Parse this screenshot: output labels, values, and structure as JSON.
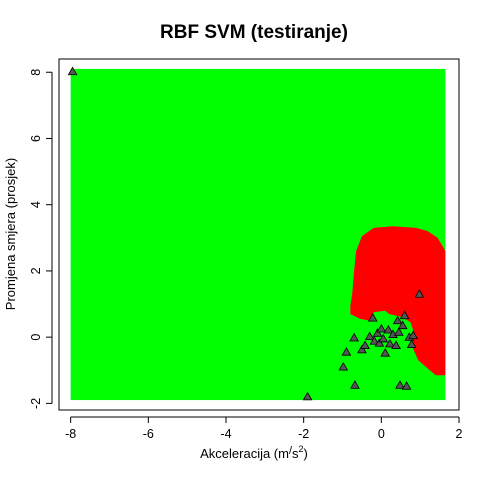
{
  "chart_data": {
    "type": "scatter",
    "title": "RBF SVM (testiranje)",
    "xlabel_prefix": "Akceleracija (m",
    "xlabel_slash": "/",
    "xlabel_unit": "s",
    "xlabel_exp": "2",
    "xlabel_suffix": ")",
    "ylabel": "Promjena smjera (prosjek)",
    "xlim": [
      -8.3,
      2.0
    ],
    "ylim": [
      -2.2,
      8.4
    ],
    "x_ticks": [
      -8,
      -6,
      -4,
      -2,
      0,
      2
    ],
    "y_ticks": [
      -2,
      0,
      2,
      4,
      6,
      8
    ],
    "grid": false,
    "region": {
      "xmin": -8.0,
      "xmax": 1.65,
      "ymin": -1.9,
      "ymax": 8.1,
      "background_class_color": "#00FF00",
      "red_class_color": "#FF0000",
      "red_boundary": [
        [
          1.65,
          2.6
        ],
        [
          1.55,
          2.8
        ],
        [
          1.45,
          3.0
        ],
        [
          1.2,
          3.2
        ],
        [
          0.9,
          3.3
        ],
        [
          0.3,
          3.35
        ],
        [
          -0.2,
          3.3
        ],
        [
          -0.5,
          3.05
        ],
        [
          -0.65,
          2.6
        ],
        [
          -0.7,
          2.0
        ],
        [
          -0.75,
          1.3
        ],
        [
          -0.8,
          0.95
        ],
        [
          -0.8,
          0.7
        ],
        [
          -0.55,
          0.55
        ],
        [
          -0.3,
          0.5
        ],
        [
          -0.2,
          0.75
        ],
        [
          0.1,
          0.8
        ],
        [
          0.2,
          0.7
        ],
        [
          0.55,
          0.6
        ],
        [
          0.75,
          0.45
        ],
        [
          0.85,
          0.1
        ],
        [
          0.8,
          -0.3
        ],
        [
          0.95,
          -0.7
        ],
        [
          1.2,
          -0.95
        ],
        [
          1.4,
          -1.15
        ],
        [
          1.65,
          -1.15
        ]
      ]
    },
    "marker": {
      "shape": "triangle",
      "fill": "#555555",
      "stroke": "#000000"
    },
    "points": [
      {
        "x": -7.95,
        "y": 8.02
      },
      {
        "x": -1.9,
        "y": -1.8
      },
      {
        "x": -0.98,
        "y": -0.9
      },
      {
        "x": -0.9,
        "y": -0.45
      },
      {
        "x": -0.68,
        "y": -1.45
      },
      {
        "x": -0.7,
        "y": -0.02
      },
      {
        "x": -0.5,
        "y": -0.38
      },
      {
        "x": -0.42,
        "y": -0.25
      },
      {
        "x": -0.3,
        "y": 0.02
      },
      {
        "x": -0.22,
        "y": 0.58
      },
      {
        "x": -0.18,
        "y": -0.12
      },
      {
        "x": -0.1,
        "y": 0.12
      },
      {
        "x": -0.05,
        "y": -0.18
      },
      {
        "x": 0.0,
        "y": 0.25
      },
      {
        "x": 0.05,
        "y": -0.05
      },
      {
        "x": 0.1,
        "y": -0.48
      },
      {
        "x": 0.18,
        "y": 0.22
      },
      {
        "x": 0.22,
        "y": -0.2
      },
      {
        "x": 0.3,
        "y": 0.08
      },
      {
        "x": 0.38,
        "y": -0.25
      },
      {
        "x": 0.42,
        "y": 0.5
      },
      {
        "x": 0.45,
        "y": 0.15
      },
      {
        "x": 0.48,
        "y": -1.45
      },
      {
        "x": 0.55,
        "y": 0.35
      },
      {
        "x": 0.6,
        "y": 0.65
      },
      {
        "x": 0.65,
        "y": -1.48
      },
      {
        "x": 0.72,
        "y": 0.0
      },
      {
        "x": 0.78,
        "y": -0.22
      },
      {
        "x": 0.82,
        "y": 0.05
      },
      {
        "x": 0.98,
        "y": 1.3
      }
    ]
  }
}
